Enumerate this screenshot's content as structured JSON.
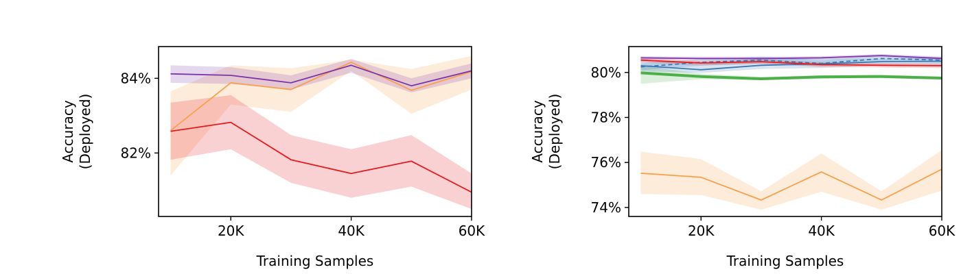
{
  "chart_data": [
    {
      "type": "line",
      "xlabel": "Training Samples",
      "ylabel": [
        "Accuracy",
        "(Deployed)"
      ],
      "x": [
        10000,
        20000,
        30000,
        40000,
        50000,
        60000
      ],
      "xlim": [
        8000,
        60000
      ],
      "ylim": [
        80.3,
        84.85
      ],
      "xticks": [
        20000,
        40000,
        60000
      ],
      "xtick_labels": [
        "20K",
        "40K",
        "60K"
      ],
      "yticks": [
        82,
        84
      ],
      "ytick_labels": [
        "82%",
        "84%"
      ],
      "grid": false,
      "series": [
        {
          "color": "#f8a04c",
          "width": 1.8,
          "dash": "",
          "values": [
            82.6,
            83.88,
            83.7,
            84.43,
            83.68,
            84.18
          ],
          "band_lo": [
            81.4,
            83.3,
            83.1,
            84.2,
            83.05,
            83.7
          ],
          "band_hi": [
            83.65,
            84.35,
            84.27,
            84.5,
            84.25,
            84.6
          ]
        },
        {
          "color": "#e41a1c",
          "width": 1.8,
          "dash": "",
          "values": [
            82.58,
            82.82,
            81.82,
            81.45,
            81.78,
            80.95
          ],
          "band_lo": [
            81.82,
            82.1,
            81.2,
            80.8,
            81.1,
            80.5
          ],
          "band_hi": [
            83.35,
            83.55,
            82.48,
            82.1,
            82.48,
            81.45
          ]
        },
        {
          "color": "#7b35a8",
          "width": 1.8,
          "dash": "",
          "values": [
            84.12,
            84.08,
            83.88,
            84.35,
            83.8,
            84.2
          ],
          "band_lo": [
            83.88,
            83.85,
            83.7,
            84.15,
            83.62,
            84.0
          ],
          "band_hi": [
            84.35,
            84.3,
            84.08,
            84.52,
            84.0,
            84.4
          ]
        }
      ]
    },
    {
      "type": "line",
      "xlabel": "Training Samples",
      "ylabel": [
        "Accuracy",
        "(Deployed)"
      ],
      "x": [
        10000,
        20000,
        30000,
        40000,
        50000,
        60000
      ],
      "xlim": [
        8000,
        60000
      ],
      "ylim": [
        73.6,
        81.15
      ],
      "xticks": [
        20000,
        40000,
        60000
      ],
      "xtick_labels": [
        "20K",
        "40K",
        "60K"
      ],
      "yticks": [
        74,
        76,
        78,
        80
      ],
      "ytick_labels": [
        "74%",
        "76%",
        "78%",
        "80%"
      ],
      "grid": false,
      "series": [
        {
          "color": "#f8a04c",
          "width": 1.8,
          "dash": "",
          "values": [
            75.52,
            75.34,
            74.33,
            75.58,
            74.33,
            75.7
          ],
          "band_lo": [
            74.6,
            74.55,
            73.9,
            74.7,
            73.9,
            74.75
          ],
          "band_hi": [
            76.48,
            76.15,
            74.72,
            76.4,
            74.72,
            76.55
          ]
        },
        {
          "color": "#4daf4a",
          "width": 4.0,
          "dash": "",
          "values": [
            79.98,
            79.82,
            79.72,
            79.8,
            79.82,
            79.75
          ],
          "band_lo": [
            79.5,
            79.7,
            79.65,
            79.72,
            79.75,
            79.68
          ],
          "band_hi": [
            80.3,
            79.95,
            79.8,
            79.88,
            79.9,
            79.82
          ]
        },
        {
          "color": "#3a78b5",
          "width": 1.8,
          "dash": "",
          "values": [
            80.3,
            80.12,
            80.32,
            80.38,
            80.48,
            80.5
          ],
          "band_lo": [
            80.05,
            79.98,
            80.15,
            80.2,
            80.3,
            80.32
          ],
          "band_hi": [
            80.6,
            80.35,
            80.62,
            80.62,
            80.62,
            80.65
          ]
        },
        {
          "color": "#3a78b5",
          "width": 1.8,
          "dash": "6,4",
          "values": [
            80.25,
            80.45,
            80.55,
            80.4,
            80.62,
            80.55
          ],
          "band_lo": [
            80.1,
            80.3,
            80.4,
            80.28,
            80.48,
            80.42
          ],
          "band_hi": [
            80.4,
            80.6,
            80.7,
            80.55,
            80.75,
            80.68
          ]
        },
        {
          "color": "#e41a1c",
          "width": 1.8,
          "dash": "",
          "values": [
            80.55,
            80.42,
            80.48,
            80.35,
            80.32,
            80.3
          ],
          "band_lo": [
            80.45,
            80.32,
            80.38,
            80.25,
            80.22,
            80.2
          ],
          "band_hi": [
            80.65,
            80.52,
            80.58,
            80.45,
            80.42,
            80.4
          ]
        },
        {
          "color": "#7b35a8",
          "width": 1.8,
          "dash": "",
          "values": [
            80.65,
            80.62,
            80.62,
            80.65,
            80.75,
            80.62
          ],
          "band_lo": [
            80.58,
            80.55,
            80.55,
            80.58,
            80.68,
            80.55
          ],
          "band_hi": [
            80.72,
            80.7,
            80.7,
            80.72,
            80.82,
            80.7
          ]
        }
      ]
    }
  ]
}
